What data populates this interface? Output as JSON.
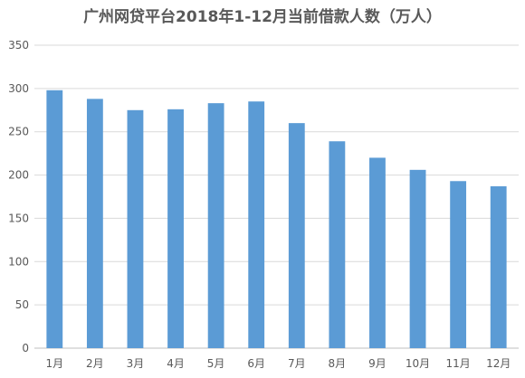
{
  "chart_data": {
    "type": "bar",
    "title": "广州网贷平台2018年1-12月当前借款人数（万人）",
    "categories": [
      "1月",
      "2月",
      "3月",
      "4月",
      "5月",
      "6月",
      "7月",
      "8月",
      "9月",
      "10月",
      "11月",
      "12月"
    ],
    "values": [
      298,
      288,
      275,
      276,
      283,
      285,
      260,
      239,
      220,
      206,
      193,
      187
    ],
    "ylim": [
      0,
      350
    ],
    "yticks": [
      0,
      50,
      100,
      150,
      200,
      250,
      300,
      350
    ],
    "grid": true,
    "legend": "none",
    "bar_color": "#5b9bd5"
  }
}
